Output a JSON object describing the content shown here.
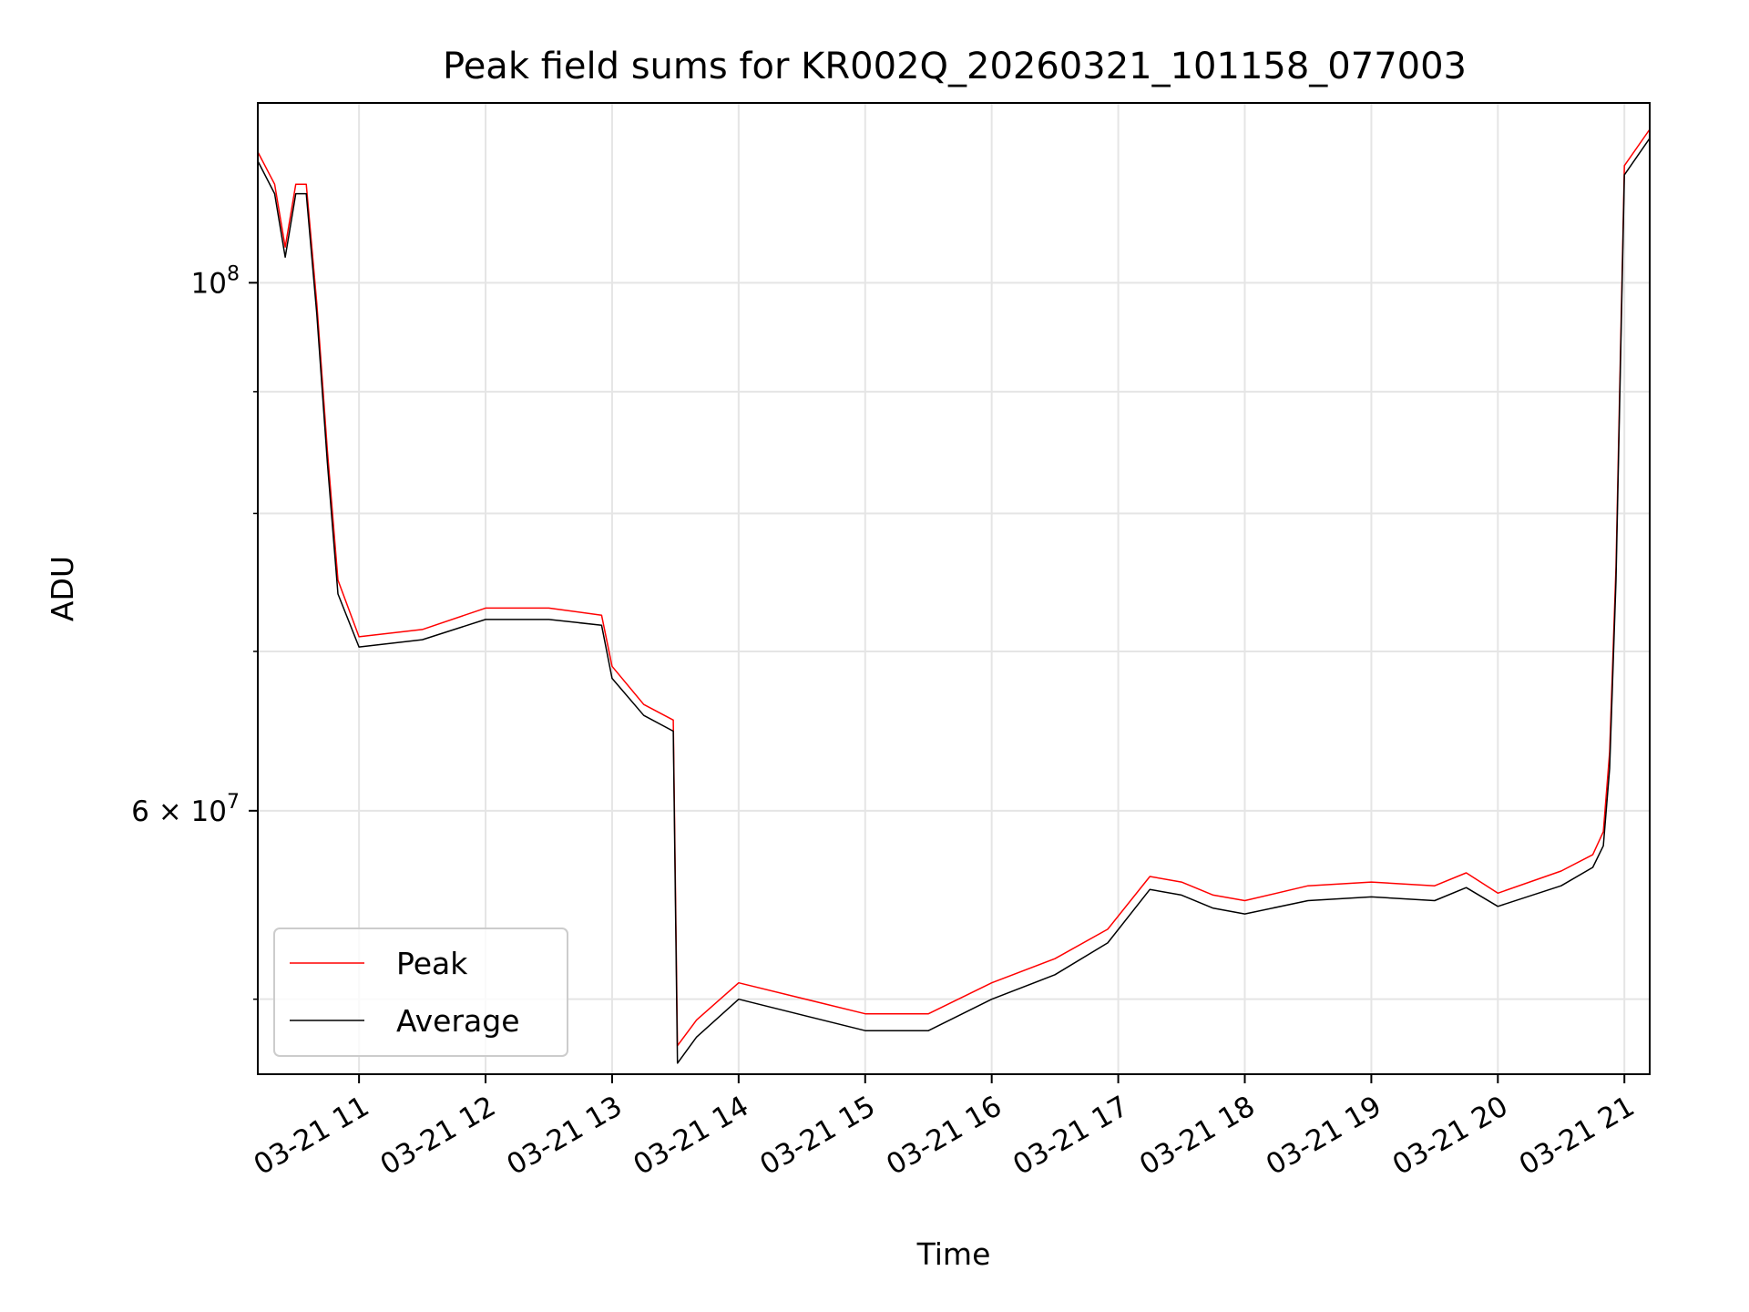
{
  "chart_data": {
    "type": "line",
    "title": "Peak field sums for KR002Q_20260321_101158_077003",
    "xlabel": "Time",
    "ylabel": "ADU",
    "x_format": "MM-DD HH",
    "xlim": [
      "2026-03-21 10:12",
      "2026-03-21 21:12"
    ],
    "ylim": [
      46500000,
      119000000
    ],
    "yscale": "log",
    "grid": true,
    "legend_position": "lower-left",
    "x_ticks": [
      "2026-03-21 11:00",
      "2026-03-21 12:00",
      "2026-03-21 13:00",
      "2026-03-21 14:00",
      "2026-03-21 15:00",
      "2026-03-21 16:00",
      "2026-03-21 17:00",
      "2026-03-21 18:00",
      "2026-03-21 19:00",
      "2026-03-21 20:00",
      "2026-03-21 21:00"
    ],
    "x_tick_labels": [
      "03-21 11",
      "03-21 12",
      "03-21 13",
      "03-21 14",
      "03-21 15",
      "03-21 16",
      "03-21 17",
      "03-21 18",
      "03-21 19",
      "03-21 20",
      "03-21 21"
    ],
    "y_major_ticks": [
      60000000,
      100000000
    ],
    "y_major_tick_labels": [
      "6 × 10^7",
      "10^8"
    ],
    "y_minor_ticks": [
      50000000,
      70000000,
      80000000,
      90000000
    ],
    "series": [
      {
        "name": "Peak",
        "color": "#ff0000",
        "x": [
          "2026-03-21 10:12",
          "2026-03-21 10:20",
          "2026-03-21 10:25",
          "2026-03-21 10:30",
          "2026-03-21 10:35",
          "2026-03-21 10:40",
          "2026-03-21 10:45",
          "2026-03-21 10:50",
          "2026-03-21 11:00",
          "2026-03-21 11:30",
          "2026-03-21 12:00",
          "2026-03-21 12:30",
          "2026-03-21 12:55",
          "2026-03-21 13:00",
          "2026-03-21 13:15",
          "2026-03-21 13:29",
          "2026-03-21 13:31",
          "2026-03-21 13:40",
          "2026-03-21 14:00",
          "2026-03-21 15:00",
          "2026-03-21 15:30",
          "2026-03-21 16:00",
          "2026-03-21 16:30",
          "2026-03-21 16:55",
          "2026-03-21 17:15",
          "2026-03-21 17:30",
          "2026-03-21 17:45",
          "2026-03-21 18:00",
          "2026-03-21 18:30",
          "2026-03-21 19:00",
          "2026-03-21 19:30",
          "2026-03-21 19:45",
          "2026-03-21 20:00",
          "2026-03-21 20:30",
          "2026-03-21 20:45",
          "2026-03-21 20:50",
          "2026-03-21 20:53",
          "2026-03-21 20:56",
          "2026-03-21 21:00",
          "2026-03-21 21:12"
        ],
        "y": [
          113500000,
          110000000,
          103500000,
          110000000,
          110000000,
          98000000,
          85000000,
          75000000,
          71000000,
          71500000,
          73000000,
          73000000,
          72500000,
          69000000,
          66500000,
          65500000,
          47800000,
          49000000,
          50800000,
          49300000,
          49300000,
          50800000,
          52000000,
          53500000,
          56300000,
          56000000,
          55300000,
          55000000,
          55800000,
          56000000,
          55800000,
          56500000,
          55400000,
          56600000,
          57500000,
          58800000,
          63500000,
          76000000,
          112000000,
          116000000
        ]
      },
      {
        "name": "Average",
        "color": "#000000",
        "x": [
          "2026-03-21 10:12",
          "2026-03-21 10:20",
          "2026-03-21 10:25",
          "2026-03-21 10:30",
          "2026-03-21 10:35",
          "2026-03-21 10:40",
          "2026-03-21 10:45",
          "2026-03-21 10:50",
          "2026-03-21 11:00",
          "2026-03-21 11:30",
          "2026-03-21 12:00",
          "2026-03-21 12:30",
          "2026-03-21 12:55",
          "2026-03-21 13:00",
          "2026-03-21 13:15",
          "2026-03-21 13:29",
          "2026-03-21 13:31",
          "2026-03-21 13:40",
          "2026-03-21 14:00",
          "2026-03-21 15:00",
          "2026-03-21 15:30",
          "2026-03-21 16:00",
          "2026-03-21 16:30",
          "2026-03-21 16:55",
          "2026-03-21 17:15",
          "2026-03-21 17:30",
          "2026-03-21 17:45",
          "2026-03-21 18:00",
          "2026-03-21 18:30",
          "2026-03-21 19:00",
          "2026-03-21 19:30",
          "2026-03-21 19:45",
          "2026-03-21 20:00",
          "2026-03-21 20:30",
          "2026-03-21 20:45",
          "2026-03-21 20:50",
          "2026-03-21 20:53",
          "2026-03-21 20:56",
          "2026-03-21 21:00",
          "2026-03-21 21:12"
        ],
        "y": [
          112500000,
          109000000,
          102500000,
          109000000,
          109000000,
          97000000,
          84000000,
          74000000,
          70300000,
          70800000,
          72200000,
          72200000,
          71800000,
          68200000,
          65800000,
          64800000,
          47000000,
          48200000,
          50000000,
          48500000,
          48500000,
          50000000,
          51200000,
          52800000,
          55600000,
          55300000,
          54600000,
          54300000,
          55000000,
          55200000,
          55000000,
          55700000,
          54700000,
          55800000,
          56800000,
          58000000,
          62500000,
          75000000,
          111000000,
          115000000
        ]
      }
    ]
  }
}
